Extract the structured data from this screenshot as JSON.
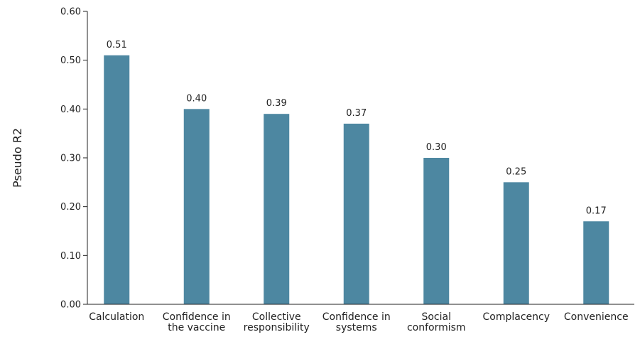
{
  "chart_data": {
    "type": "bar",
    "title": "",
    "xlabel": "",
    "ylabel": "Pseudo R2",
    "ylim": [
      0,
      0.6
    ],
    "yticks": [
      "0.00",
      "0.10",
      "0.20",
      "0.30",
      "0.40",
      "0.50",
      "0.60"
    ],
    "categories": [
      [
        "Calculation"
      ],
      [
        "Confidence in",
        "the vaccine"
      ],
      [
        "Collective",
        "responsibility"
      ],
      [
        "Confidence in",
        "systems"
      ],
      [
        "Social",
        "conformism"
      ],
      [
        "Complacency"
      ],
      [
        "Convenience"
      ]
    ],
    "values": [
      0.51,
      0.4,
      0.39,
      0.37,
      0.3,
      0.25,
      0.17
    ],
    "value_labels": [
      "0.51",
      "0.40",
      "0.39",
      "0.37",
      "0.30",
      "0.25",
      "0.17"
    ],
    "grid": false,
    "colors": {
      "bar": "#4d87a1",
      "axis": "#222222"
    }
  }
}
